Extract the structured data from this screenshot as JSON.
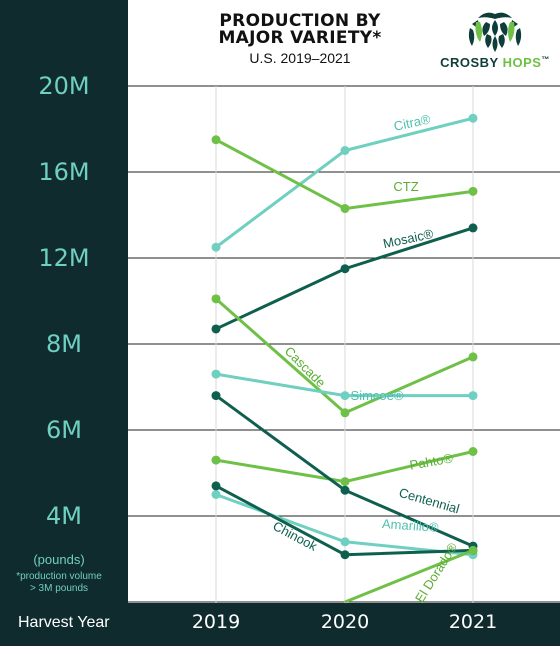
{
  "chart_data": {
    "type": "line",
    "title": "PRODUCTION BY",
    "title_line2": "MAJOR VARIETY*",
    "subtitle": "U.S. 2019–2021",
    "xlabel": "Harvest Year",
    "ylabel": "(pounds)",
    "footnote_line1": "*production volume",
    "footnote_line2": "> 3M pounds",
    "x": [
      "2019",
      "2020",
      "2021"
    ],
    "y_ticks": [
      "20M",
      "16M",
      "12M",
      "8M",
      "6M",
      "4M"
    ],
    "y_tick_values": [
      20000000,
      16000000,
      12000000,
      8000000,
      6000000,
      4000000
    ],
    "grid": true,
    "series": [
      {
        "name": "Citra®",
        "values": [
          12500000,
          17000000,
          18500000
        ],
        "color": "#6fcfc0",
        "label_color": "#4fbfae"
      },
      {
        "name": "CTZ",
        "values": [
          17500000,
          14300000,
          15100000
        ],
        "color": "#6fc046",
        "label_color": "#5aae35"
      },
      {
        "name": "Mosaic®",
        "values": [
          8700000,
          11500000,
          13400000
        ],
        "color": "#0f5f4f",
        "label_color": "#0f5f4f"
      },
      {
        "name": "Cascade",
        "values": [
          10100000,
          6400000,
          7700000
        ],
        "color": "#6fc046",
        "label_color": "#5aae35"
      },
      {
        "name": "Simcoe®",
        "values": [
          7300000,
          6800000,
          6800000
        ],
        "color": "#6fcfc0",
        "label_color": "#4fbfae"
      },
      {
        "name": "Pahto®",
        "values": [
          5300000,
          4800000,
          5500000
        ],
        "color": "#6fc046",
        "label_color": "#5aae35"
      },
      {
        "name": "Centennial",
        "values": [
          6800000,
          4600000,
          3300000
        ],
        "color": "#0f5f4f",
        "label_color": "#0f5f4f"
      },
      {
        "name": "Amarillo®",
        "values": [
          4500000,
          3400000,
          3100000
        ],
        "color": "#6fcfc0",
        "label_color": "#4fbfae"
      },
      {
        "name": "Chinook",
        "values": [
          4700000,
          3100000,
          3200000
        ],
        "color": "#0f5f4f",
        "label_color": "#0f5f4f"
      },
      {
        "name": "El Dorado®",
        "values": [
          null,
          2000000,
          3200000
        ],
        "color": "#6fc046",
        "label_color": "#5aae35"
      }
    ]
  },
  "brand": {
    "word1": "CROSBY",
    "word2": "HOPS",
    "mark": "™",
    "dark_color": "#0f3d3a",
    "accent_color": "#6fc046"
  }
}
